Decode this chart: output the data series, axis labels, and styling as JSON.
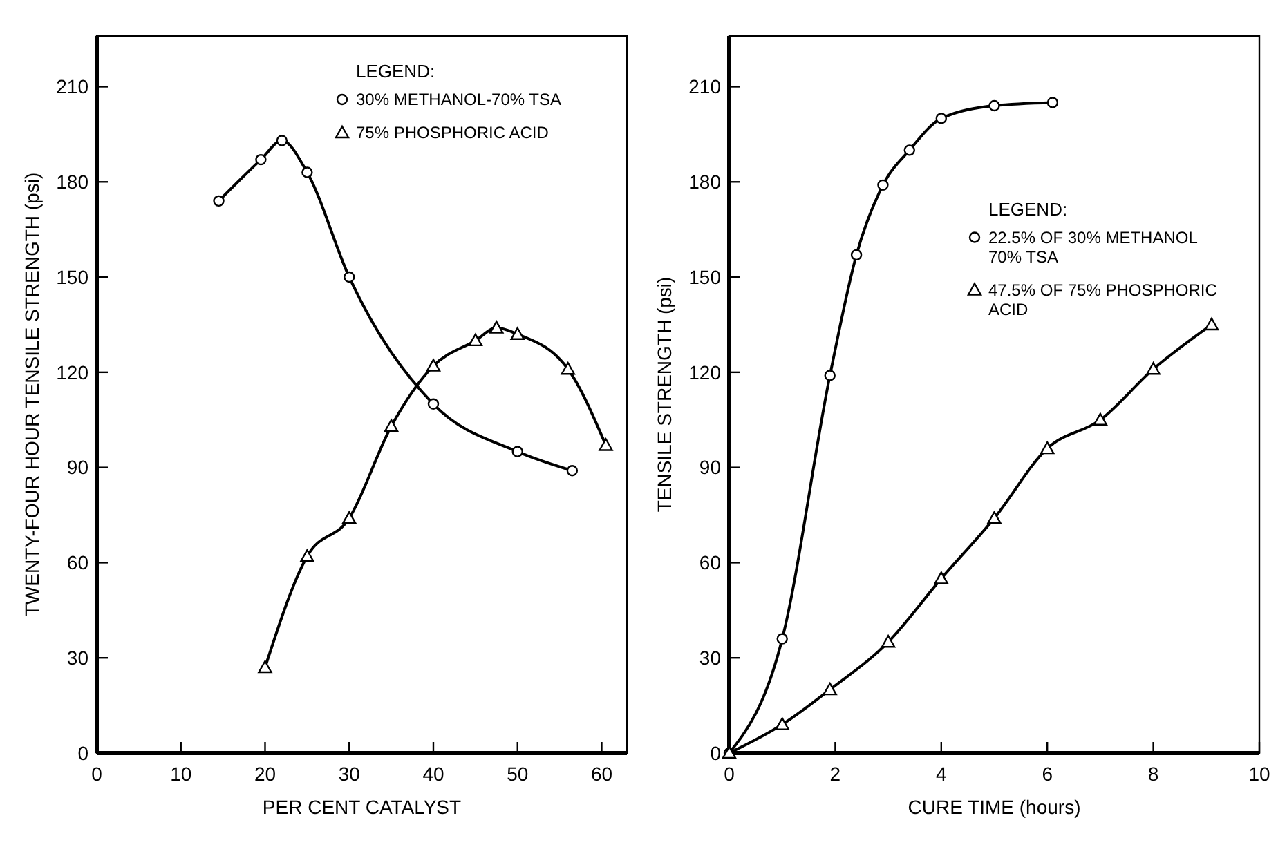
{
  "chart_data": [
    {
      "type": "line",
      "xlabel": "PER CENT CATALYST",
      "ylabel": "TWENTY-FOUR HOUR TENSILE STRENGTH (psi)",
      "legend_title": "LEGEND:",
      "legend": "top right",
      "grid": false,
      "xlim": [
        0,
        63
      ],
      "ylim": [
        0,
        226
      ],
      "xticks": [
        0,
        10,
        20,
        30,
        40,
        50,
        60
      ],
      "yticks": [
        0,
        30,
        60,
        90,
        120,
        150,
        180,
        210
      ],
      "series": [
        {
          "name": "30% METHANOL-70% TSA",
          "color": "#000000",
          "marker": "circle",
          "x": [
            14.5,
            19.5,
            22,
            25,
            30,
            40,
            50,
            56.5
          ],
          "values": [
            174,
            187,
            193,
            183,
            150,
            110,
            95,
            89
          ]
        },
        {
          "name": "75% PHOSPHORIC ACID",
          "color": "#000000",
          "marker": "triangle",
          "x": [
            20,
            25,
            30,
            35,
            40,
            45,
            47.5,
            50,
            56,
            60.5
          ],
          "values": [
            27,
            62,
            74,
            103,
            122,
            130,
            134,
            132,
            121,
            97
          ]
        }
      ]
    },
    {
      "type": "line",
      "xlabel": "CURE TIME (hours)",
      "ylabel": "TENSILE STRENGTH (psi)",
      "legend_title": "LEGEND:",
      "legend": "right",
      "grid": false,
      "xlim": [
        0,
        10
      ],
      "ylim": [
        0,
        226
      ],
      "xticks": [
        0,
        2,
        4,
        6,
        8,
        10
      ],
      "yticks": [
        0,
        30,
        60,
        90,
        120,
        150,
        180,
        210
      ],
      "series": [
        {
          "name": "22.5% OF 30% METHANOL 70% TSA",
          "color": "#000000",
          "marker": "circle",
          "x": [
            0,
            1,
            1.9,
            2.4,
            2.9,
            3.4,
            4,
            5,
            6.1
          ],
          "values": [
            0,
            36,
            119,
            157,
            179,
            190,
            200,
            204,
            205
          ]
        },
        {
          "name": "47.5% OF 75% PHOSPHORIC ACID",
          "color": "#000000",
          "marker": "triangle",
          "x": [
            0,
            1,
            1.9,
            3,
            4,
            5,
            6,
            7,
            8,
            9.1
          ],
          "values": [
            0,
            9,
            20,
            35,
            55,
            74,
            96,
            105,
            121,
            135
          ]
        }
      ]
    }
  ]
}
